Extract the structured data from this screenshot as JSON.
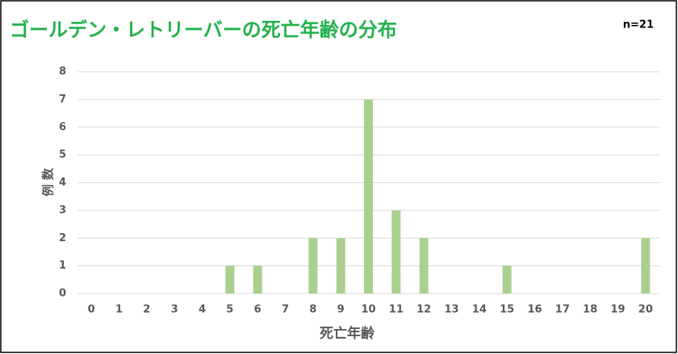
{
  "chart_data": {
    "type": "bar",
    "title": "ゴールデン・レトリーバーの死亡年齢の分布",
    "annotation": "n=21",
    "x_label": "死亡年齢",
    "y_label": "例 数",
    "categories": [
      "0",
      "1",
      "2",
      "3",
      "4",
      "5",
      "6",
      "7",
      "8",
      "9",
      "10",
      "11",
      "12",
      "13",
      "14",
      "15",
      "16",
      "17",
      "18",
      "19",
      "20"
    ],
    "values": [
      0,
      0,
      0,
      0,
      0,
      1,
      1,
      0,
      2,
      2,
      7,
      3,
      2,
      0,
      0,
      1,
      0,
      0,
      0,
      0,
      2
    ],
    "color": "#a9d18e",
    "title_color": "#22b14c",
    "ylim": [
      0,
      8
    ],
    "yticks": [
      0,
      1,
      2,
      3,
      4,
      5,
      6,
      7,
      8
    ],
    "grid": true
  }
}
